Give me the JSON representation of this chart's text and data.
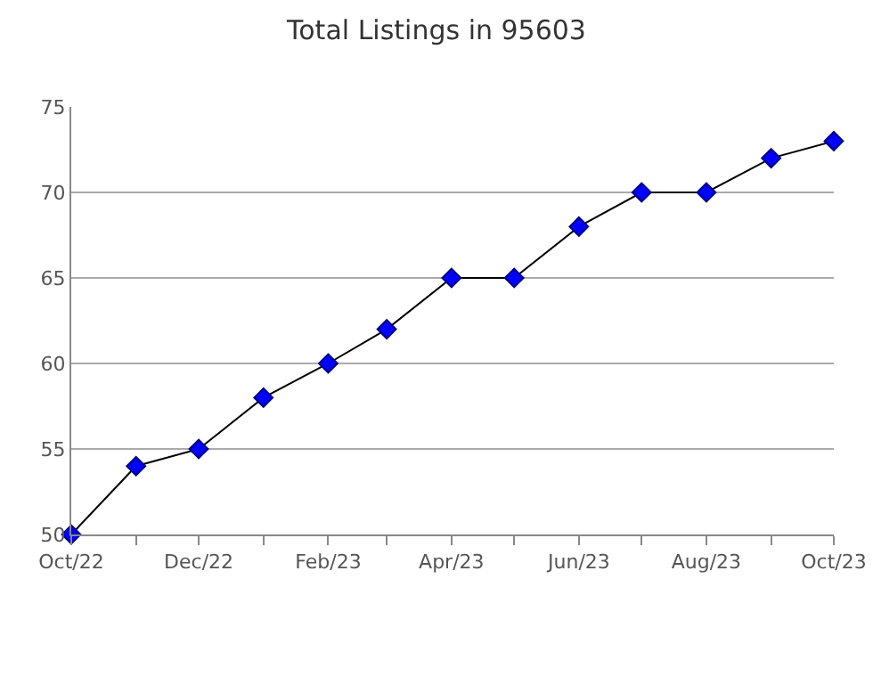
{
  "chart_data": {
    "type": "line",
    "title": "Total Listings in 95603",
    "x": [
      "2022-10",
      "2022-11",
      "2022-12",
      "2023-01",
      "2023-02",
      "2023-03",
      "2023-04",
      "2023-05",
      "2023-06",
      "2023-07",
      "2023-08",
      "2023-09",
      "2023-10"
    ],
    "series": [
      {
        "color": "#0000ff",
        "values": [
          50,
          54,
          55,
          58,
          60,
          62,
          65,
          65,
          68,
          70,
          70,
          72,
          73
        ]
      }
    ],
    "xlim": [
      "2022-10",
      "2023-10"
    ],
    "xticks": [
      {
        "value": "2022-10",
        "label": "Oct/22"
      },
      {
        "value": "2022-11",
        "label": null
      },
      {
        "value": "2022-12",
        "label": "Dec/22"
      },
      {
        "value": "2023-01",
        "label": null
      },
      {
        "value": "2023-02",
        "label": "Feb/23"
      },
      {
        "value": "2023-03",
        "label": null
      },
      {
        "value": "2023-04",
        "label": "Apr/23"
      },
      {
        "value": "2023-05",
        "label": null
      },
      {
        "value": "2023-06",
        "label": "Jun/23"
      },
      {
        "value": "2023-07",
        "label": null
      },
      {
        "value": "2023-08",
        "label": "Aug/23"
      },
      {
        "value": "2023-09",
        "label": null
      },
      {
        "value": "2023-10",
        "label": "Oct/23"
      }
    ],
    "ylim": [
      50,
      75
    ],
    "yticks": [
      50,
      55,
      60,
      65,
      70,
      75
    ],
    "grid": "y",
    "marker": "diamond",
    "line_style": "solid"
  }
}
